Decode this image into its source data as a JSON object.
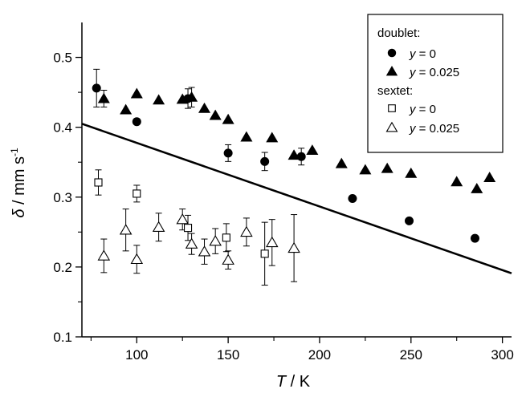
{
  "chart_data": {
    "type": "scatter",
    "xlim": [
      70,
      305
    ],
    "ylim": [
      0.1,
      0.55
    ],
    "x_ticks": [
      100,
      150,
      200,
      250,
      300
    ],
    "x_minor_ticks": [
      75,
      125,
      175,
      225,
      275
    ],
    "y_ticks": [
      0.1,
      0.2,
      0.3,
      0.4,
      0.5
    ],
    "y_minor_ticks": [
      0.15,
      0.25,
      0.35,
      0.45
    ],
    "x_tick_labels": [
      "100",
      "150",
      "200",
      "250",
      "300"
    ],
    "y_tick_labels": [
      "0.1",
      "0.2",
      "0.3",
      "0.4",
      "0.5"
    ],
    "xlabel": {
      "symbol": "T",
      "text": " / K"
    },
    "ylabel": {
      "symbol": "δ",
      "text": " / mm s",
      "sup": "-1"
    },
    "legend": {
      "position": "top-right",
      "group_titles": [
        "doublet:",
        "sextet:"
      ],
      "entries": [
        {
          "marker": "circle-filled",
          "var": "y",
          "value": " = 0"
        },
        {
          "marker": "triangle-filled",
          "var": "y",
          "value": " = 0.025"
        },
        {
          "marker": "square-open",
          "var": "y",
          "value": " = 0"
        },
        {
          "marker": "triangle-open",
          "var": "y",
          "value": " = 0.025"
        }
      ]
    },
    "line": {
      "x": [
        70,
        305
      ],
      "y": [
        0.405,
        0.191
      ]
    },
    "series": [
      {
        "marker": "circle-filled",
        "points": [
          {
            "x": 78,
            "y": 0.456,
            "err": 0.027
          },
          {
            "x": 100,
            "y": 0.408
          },
          {
            "x": 128,
            "y": 0.441,
            "err": 0.014
          },
          {
            "x": 150,
            "y": 0.363,
            "err": 0.012
          },
          {
            "x": 170,
            "y": 0.351,
            "err": 0.013
          },
          {
            "x": 190,
            "y": 0.358,
            "err": 0.012
          },
          {
            "x": 218,
            "y": 0.298
          },
          {
            "x": 249,
            "y": 0.266
          },
          {
            "x": 285,
            "y": 0.241
          }
        ]
      },
      {
        "marker": "triangle-filled",
        "points": [
          {
            "x": 82,
            "y": 0.441,
            "err": 0.012
          },
          {
            "x": 94,
            "y": 0.425
          },
          {
            "x": 100,
            "y": 0.448
          },
          {
            "x": 112,
            "y": 0.439
          },
          {
            "x": 125,
            "y": 0.44
          },
          {
            "x": 130,
            "y": 0.443,
            "err": 0.014
          },
          {
            "x": 137,
            "y": 0.427
          },
          {
            "x": 143,
            "y": 0.417
          },
          {
            "x": 150,
            "y": 0.411
          },
          {
            "x": 160,
            "y": 0.386
          },
          {
            "x": 174,
            "y": 0.385
          },
          {
            "x": 186,
            "y": 0.36
          },
          {
            "x": 196,
            "y": 0.367
          },
          {
            "x": 212,
            "y": 0.348
          },
          {
            "x": 225,
            "y": 0.339
          },
          {
            "x": 237,
            "y": 0.341
          },
          {
            "x": 250,
            "y": 0.334
          },
          {
            "x": 275,
            "y": 0.322
          },
          {
            "x": 286,
            "y": 0.312
          },
          {
            "x": 293,
            "y": 0.328
          }
        ]
      },
      {
        "marker": "square-open",
        "points": [
          {
            "x": 79,
            "y": 0.321,
            "err": 0.018
          },
          {
            "x": 100,
            "y": 0.305,
            "err": 0.012
          },
          {
            "x": 128,
            "y": 0.256,
            "err": 0.018
          },
          {
            "x": 149,
            "y": 0.242,
            "err": 0.02
          },
          {
            "x": 170,
            "y": 0.219,
            "err": 0.045
          }
        ]
      },
      {
        "marker": "triangle-open",
        "points": [
          {
            "x": 82,
            "y": 0.216,
            "err": 0.024
          },
          {
            "x": 94,
            "y": 0.253,
            "err": 0.03
          },
          {
            "x": 100,
            "y": 0.211,
            "err": 0.02
          },
          {
            "x": 112,
            "y": 0.257,
            "err": 0.02
          },
          {
            "x": 125,
            "y": 0.268,
            "err": 0.015
          },
          {
            "x": 130,
            "y": 0.233,
            "err": 0.015
          },
          {
            "x": 137,
            "y": 0.222,
            "err": 0.018
          },
          {
            "x": 143,
            "y": 0.237,
            "err": 0.018
          },
          {
            "x": 150,
            "y": 0.21,
            "err": 0.013
          },
          {
            "x": 160,
            "y": 0.25,
            "err": 0.02
          },
          {
            "x": 174,
            "y": 0.235,
            "err": 0.033
          },
          {
            "x": 186,
            "y": 0.227,
            "err": 0.048
          }
        ]
      }
    ]
  }
}
